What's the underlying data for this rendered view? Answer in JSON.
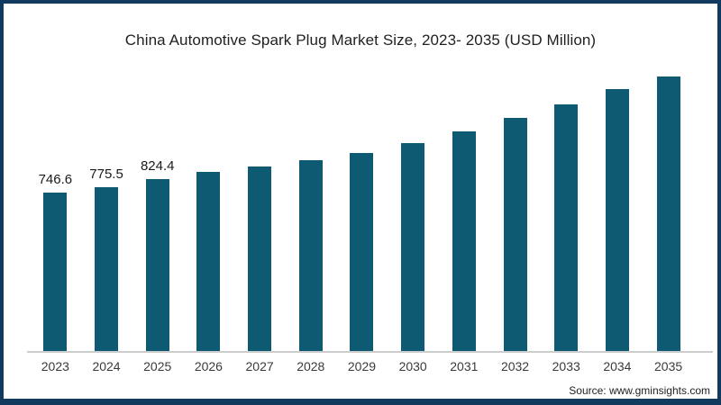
{
  "frame": {
    "border_color": "#123a5e",
    "background": "#ffffff"
  },
  "title": "China Automotive Spark Plug Market Size, 2023- 2035 (USD Million)",
  "source": "Source: www.gminsights.com",
  "chart_data": {
    "type": "bar",
    "title": "China Automotive Spark Plug Market Size, 2023- 2035 (USD Million)",
    "categories": [
      "2023",
      "2024",
      "2025",
      "2026",
      "2027",
      "2028",
      "2029",
      "2030",
      "2031",
      "2032",
      "2033",
      "2034",
      "2035"
    ],
    "values": [
      746.6,
      775.5,
      824.4,
      866,
      897,
      932,
      975,
      1033,
      1101,
      1176,
      1255,
      1342,
      1417
    ],
    "value_labels": [
      "746.6",
      "775.5",
      "824.4",
      "",
      "",
      "",
      "",
      "",
      "",
      "",
      "",
      "",
      ""
    ],
    "xlabel": "",
    "ylabel": "",
    "unit": "USD Million",
    "bar_color": "#0d5a72",
    "axis_line_color": "#cccccc",
    "value_label_color": "#1a1a1a",
    "tick_label_color": "#3a3a3a",
    "gridlines": false,
    "value_axis_visible": false,
    "legend_position": "none"
  }
}
